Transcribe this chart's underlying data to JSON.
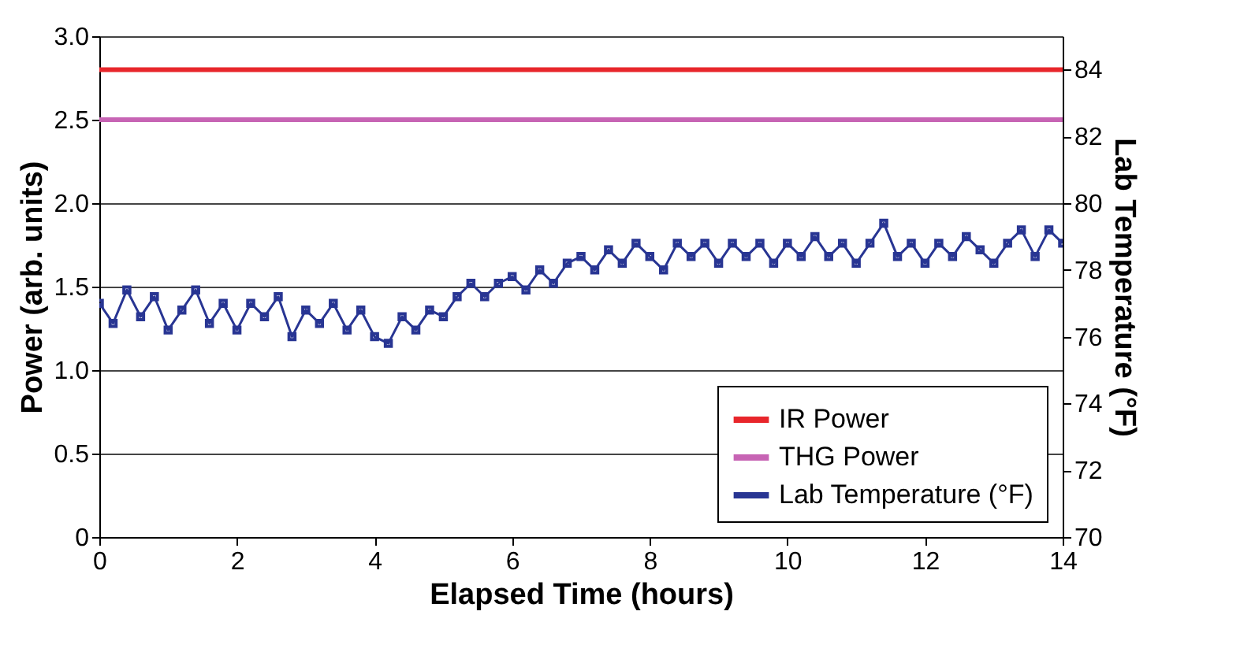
{
  "chart_data": {
    "type": "line",
    "xlabel": "Elapsed Time (hours)",
    "ylabel": "Power (arb. units)",
    "y2label": "Lab Temperature (°F)",
    "xlim": [
      0,
      14
    ],
    "xticks": [
      0,
      2,
      4,
      6,
      8,
      10,
      12,
      14
    ],
    "ylim": [
      0,
      3
    ],
    "yticks": [
      0,
      0.5,
      {
        "value": 1,
        "label": "1.0"
      },
      1.5,
      {
        "value": 2,
        "label": "2.0"
      },
      2.5,
      {
        "value": 3,
        "label": "3.0"
      }
    ],
    "y2lim": [
      70,
      85
    ],
    "y2ticks": [
      70,
      72,
      74,
      76,
      78,
      80,
      82,
      84
    ],
    "grid": "y",
    "legend": "bottom right",
    "line_style": "solid",
    "series": [
      {
        "name": "IR Power",
        "color": "#e8262b",
        "x": [
          0,
          14
        ],
        "values": [
          2.8,
          2.8
        ],
        "marker": "none"
      },
      {
        "name": "THG Power",
        "color": "#c764b4",
        "x": [
          0,
          14
        ],
        "values": [
          2.5,
          2.5
        ],
        "marker": "none"
      },
      {
        "name": "Lab Temperature (°F)",
        "color": "#283593",
        "axis": "y2",
        "marker": "square",
        "x": [
          0,
          0.2,
          0.4,
          0.6,
          0.8,
          1,
          1.2,
          1.4,
          1.6,
          1.8,
          2,
          2.2,
          2.4,
          2.6,
          2.8,
          3,
          3.2,
          3.4,
          3.6,
          3.8,
          4,
          4.2,
          4.4,
          4.6,
          4.8,
          5,
          5.2,
          5.4,
          5.6,
          5.8,
          6,
          6.2,
          6.4,
          6.6,
          6.8,
          7,
          7.2,
          7.4,
          7.6,
          7.8,
          8,
          8.2,
          8.4,
          8.6,
          8.8,
          9,
          9.2,
          9.4,
          9.6,
          9.8,
          10,
          10.2,
          10.4,
          10.6,
          10.8,
          11,
          11.2,
          11.4,
          11.6,
          11.8,
          12,
          12.2,
          12.4,
          12.6,
          12.8,
          13,
          13.2,
          13.4,
          13.6,
          13.8,
          14
        ],
        "values": [
          77.0,
          76.4,
          77.4,
          76.6,
          77.2,
          76.2,
          76.8,
          77.4,
          76.4,
          77.0,
          76.2,
          77.0,
          76.6,
          77.2,
          76.0,
          76.8,
          76.4,
          77.0,
          76.2,
          76.8,
          76.0,
          75.8,
          76.6,
          76.2,
          76.8,
          76.6,
          77.2,
          77.6,
          77.2,
          77.6,
          77.8,
          77.4,
          78.0,
          77.6,
          78.2,
          78.4,
          78.0,
          78.6,
          78.2,
          78.8,
          78.4,
          78.0,
          78.8,
          78.4,
          78.8,
          78.2,
          78.8,
          78.4,
          78.8,
          78.2,
          78.8,
          78.4,
          79.0,
          78.4,
          78.8,
          78.2,
          78.8,
          79.4,
          78.4,
          78.8,
          78.2,
          78.8,
          78.4,
          79.0,
          78.6,
          78.2,
          78.8,
          79.2,
          78.4,
          79.2,
          78.8
        ]
      }
    ]
  }
}
